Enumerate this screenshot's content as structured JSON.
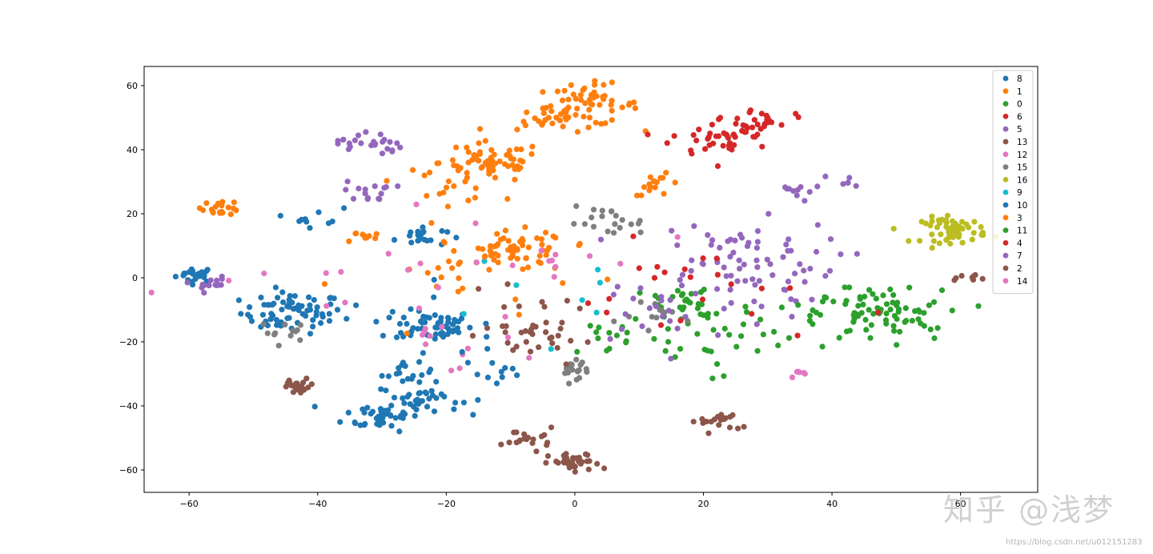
{
  "chart_data": {
    "type": "scatter",
    "title": "",
    "xlabel": "",
    "ylabel": "",
    "xlim": [
      -67,
      72
    ],
    "ylim": [
      -67,
      66
    ],
    "grid": false,
    "legend_placement": "top-right",
    "x_ticks": [
      -60,
      -40,
      -20,
      0,
      20,
      40,
      60
    ],
    "y_ticks": [
      60,
      40,
      20,
      0,
      -20,
      -40,
      -60
    ],
    "series": [
      {
        "name": "8",
        "color": "#1f77b4",
        "clusters": [
          [
            -59,
            1,
            1.5,
            22
          ],
          [
            -44,
            -11,
            4,
            70
          ],
          [
            -22,
            -15,
            3,
            50
          ],
          [
            -30,
            -43,
            3,
            40
          ],
          [
            -24,
            -38,
            3,
            35
          ],
          [
            -24,
            13,
            2,
            20
          ],
          [
            -40,
            19,
            2,
            10
          ],
          [
            -26,
            -30,
            2,
            15
          ],
          [
            -12,
            -30,
            3,
            10
          ]
        ]
      },
      {
        "name": "1",
        "color": "#ff7f0e",
        "clusters": [
          [
            2,
            54,
            4,
            55
          ],
          [
            -4,
            50,
            2.5,
            22
          ],
          [
            -13,
            36,
            4,
            60
          ],
          [
            -9,
            8,
            4,
            60
          ],
          [
            -55,
            22,
            1.5,
            20
          ],
          [
            13,
            29,
            2,
            15
          ],
          [
            -33,
            13,
            1.5,
            10
          ],
          [
            -20,
            30,
            4,
            20
          ]
        ]
      },
      {
        "name": "0",
        "color": "#2ca02c",
        "clusters": [
          [
            47,
            -12,
            5,
            70
          ],
          [
            18,
            -9,
            5,
            35
          ],
          [
            6,
            -18,
            4,
            15
          ]
        ]
      },
      {
        "name": "6",
        "color": "#d62728",
        "clusters": [
          [
            23,
            44,
            4,
            45
          ],
          [
            30,
            50,
            2,
            18
          ]
        ]
      },
      {
        "name": "5",
        "color": "#9467bd",
        "clusters": [
          [
            25,
            5,
            8,
            70
          ],
          [
            -32,
            27,
            2,
            15
          ],
          [
            -32,
            42,
            2.5,
            25
          ],
          [
            -57,
            -2,
            1.5,
            14
          ],
          [
            42,
            30,
            1.5,
            6
          ]
        ]
      },
      {
        "name": "13",
        "color": "#8c564b",
        "clusters": [
          [
            -43,
            -34,
            1.5,
            22
          ],
          [
            0,
            -58,
            2,
            35
          ],
          [
            -7,
            -50,
            2,
            20
          ],
          [
            22,
            -45,
            2,
            18
          ],
          [
            -5,
            -18,
            3,
            20
          ]
        ]
      },
      {
        "name": "12",
        "color": "#e377c2",
        "clusters": [
          [
            -20,
            -20,
            6,
            12
          ],
          [
            -5,
            5,
            8,
            12
          ]
        ]
      },
      {
        "name": "15",
        "color": "#7f7f7f",
        "clusters": [
          [
            0,
            -28,
            2,
            18
          ],
          [
            5,
            17,
            3,
            20
          ],
          [
            -45,
            -17,
            2,
            12
          ],
          [
            15,
            -12,
            4,
            12
          ]
        ]
      },
      {
        "name": "16",
        "color": "#bcbd22",
        "clusters": [
          [
            59,
            15,
            2.5,
            60
          ]
        ]
      },
      {
        "name": "9",
        "color": "#17becf",
        "clusters": [
          [
            -8,
            -10,
            10,
            8
          ]
        ]
      },
      {
        "name": "10",
        "color": "#1f77b4",
        "clusters": [
          [
            -20,
            -16,
            8,
            20
          ]
        ]
      },
      {
        "name": "3",
        "color": "#ff7f0e",
        "clusters": [
          [
            -15,
            0,
            10,
            22
          ]
        ]
      },
      {
        "name": "11",
        "color": "#2ca02c",
        "clusters": [
          [
            22,
            -20,
            6,
            22
          ],
          [
            40,
            -10,
            8,
            15
          ]
        ]
      },
      {
        "name": "4",
        "color": "#d62728",
        "clusters": [
          [
            20,
            -5,
            10,
            22
          ]
        ]
      },
      {
        "name": "7",
        "color": "#9467bd",
        "clusters": [
          [
            15,
            -10,
            8,
            28
          ],
          [
            35,
            28,
            2,
            10
          ]
        ]
      },
      {
        "name": "2",
        "color": "#8c564b",
        "clusters": [
          [
            -8,
            -15,
            6,
            18
          ],
          [
            63,
            0,
            1.5,
            8
          ]
        ]
      },
      {
        "name": "14",
        "color": "#e377c2",
        "clusters": [
          [
            -35,
            -5,
            12,
            14
          ],
          [
            35,
            -30,
            1,
            6
          ]
        ]
      }
    ]
  },
  "watermark": {
    "main": "知乎 @浅梦",
    "url": "https://blog.csdn.net/u012151283"
  }
}
